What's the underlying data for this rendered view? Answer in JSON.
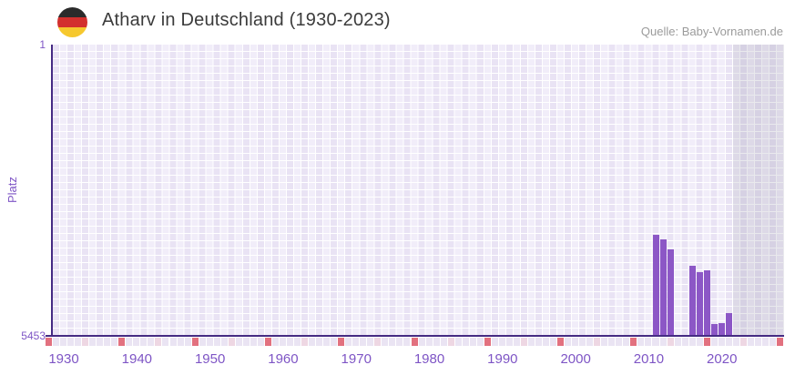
{
  "header": {
    "title": "Atharv in Deutschland (1930-2023)",
    "source": "Quelle: Baby-Vornamen.de"
  },
  "chart_data": {
    "type": "bar",
    "title": "Atharv in Deutschland (1930-2023)",
    "xlabel": "",
    "ylabel": "Platz",
    "y_axis": {
      "top_tick": "1",
      "bottom_tick": "5453",
      "min": 1,
      "max": 5453,
      "note": "rank scale, 1 at top (best), 5453 at bottom"
    },
    "x_axis": {
      "start_year": 1929,
      "end_year": 2028,
      "tick_years": [
        1930,
        1940,
        1950,
        1960,
        1970,
        1980,
        1990,
        2000,
        2010,
        2020
      ]
    },
    "bars": [
      {
        "year": 2011,
        "rank": 3567
      },
      {
        "year": 2012,
        "rank": 3652
      },
      {
        "year": 2013,
        "rank": 3834
      },
      {
        "year": 2016,
        "rank": 4146
      },
      {
        "year": 2017,
        "rank": 4255
      },
      {
        "year": 2018,
        "rank": 4231
      },
      {
        "year": 2019,
        "rank": 5232
      },
      {
        "year": 2020,
        "rank": 5215
      },
      {
        "year": 2021,
        "rank": 5033
      }
    ],
    "shaded_region": {
      "from_year": 2022,
      "to_year": 2028
    },
    "grid": true,
    "legend": null,
    "colors": {
      "bar": "#8c57c6",
      "axis": "#452b83",
      "tick_label": "#7e55c5",
      "grid_col_a": "#e9e3f4",
      "grid_col_b": "#f1edf9",
      "grid_line": "#ffffff",
      "strip_default": "#eae4f3",
      "strip_decade": "#e2717f",
      "strip_half_decade": "#eed7e3",
      "title_text": "#3b3b3b",
      "source_text": "#9b9b9b",
      "flag_stripes": [
        "#2b2b2b",
        "#d3302e",
        "#f6c82e"
      ]
    }
  }
}
